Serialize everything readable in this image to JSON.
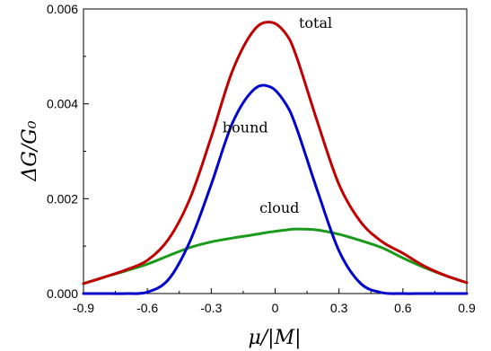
{
  "chart_data": {
    "type": "line",
    "xlabel": "μ/|M|",
    "ylabel": "ΔG/G₀",
    "xlim": [
      -0.9,
      0.9
    ],
    "ylim": [
      0,
      0.006
    ],
    "grid": false,
    "legend": "none",
    "x_ticks": [
      -0.9,
      -0.6,
      -0.3,
      0,
      0.3,
      0.6,
      0.9
    ],
    "x_tick_labels": [
      "-0.9",
      "-0.6",
      "-0.3",
      "0",
      "0.3",
      "0.6",
      "0.9"
    ],
    "y_ticks": [
      0,
      0.002,
      0.004,
      0.006
    ],
    "y_tick_labels": [
      "0.000",
      "0.002",
      "0.004",
      "0.006"
    ],
    "x": [
      -0.9,
      -0.8,
      -0.7,
      -0.6,
      -0.5,
      -0.4,
      -0.3,
      -0.2,
      -0.1,
      -0.02,
      0.05,
      0.1,
      0.2,
      0.3,
      0.4,
      0.5,
      0.6,
      0.7,
      0.8,
      0.9
    ],
    "series": [
      {
        "name": "total",
        "color": "#c00000",
        "values": [
          0.00021,
          0.00035,
          0.0005,
          0.0007,
          0.00115,
          0.002,
          0.0033,
          0.0047,
          0.00555,
          0.00572,
          0.00548,
          0.005,
          0.0036,
          0.0023,
          0.00152,
          0.0011,
          0.00085,
          0.00058,
          0.00038,
          0.00023
        ]
      },
      {
        "name": "bound",
        "color": "#0000cc",
        "values": [
          0.0,
          0.0,
          0.0,
          3e-05,
          0.0003,
          0.0011,
          0.0023,
          0.0036,
          0.0043,
          0.00435,
          0.004,
          0.0035,
          0.00215,
          0.0009,
          0.00022,
          2e-05,
          0.0,
          0.0,
          0.0,
          0.0
        ]
      },
      {
        "name": "cloud",
        "color": "#1a9a1a",
        "values": [
          0.00021,
          0.00035,
          0.00048,
          0.00062,
          0.0008,
          0.00097,
          0.00109,
          0.00117,
          0.00124,
          0.0013,
          0.00134,
          0.00136,
          0.00134,
          0.00125,
          0.00112,
          0.00097,
          0.00075,
          0.00055,
          0.00038,
          0.00023
        ]
      }
    ],
    "annotations": [
      {
        "text": "total",
        "x": 0.19,
        "y": 0.0056
      },
      {
        "text": "bound",
        "x": -0.14,
        "y": 0.0034
      },
      {
        "text": "cloud",
        "x": 0.02,
        "y": 0.0017
      }
    ]
  }
}
